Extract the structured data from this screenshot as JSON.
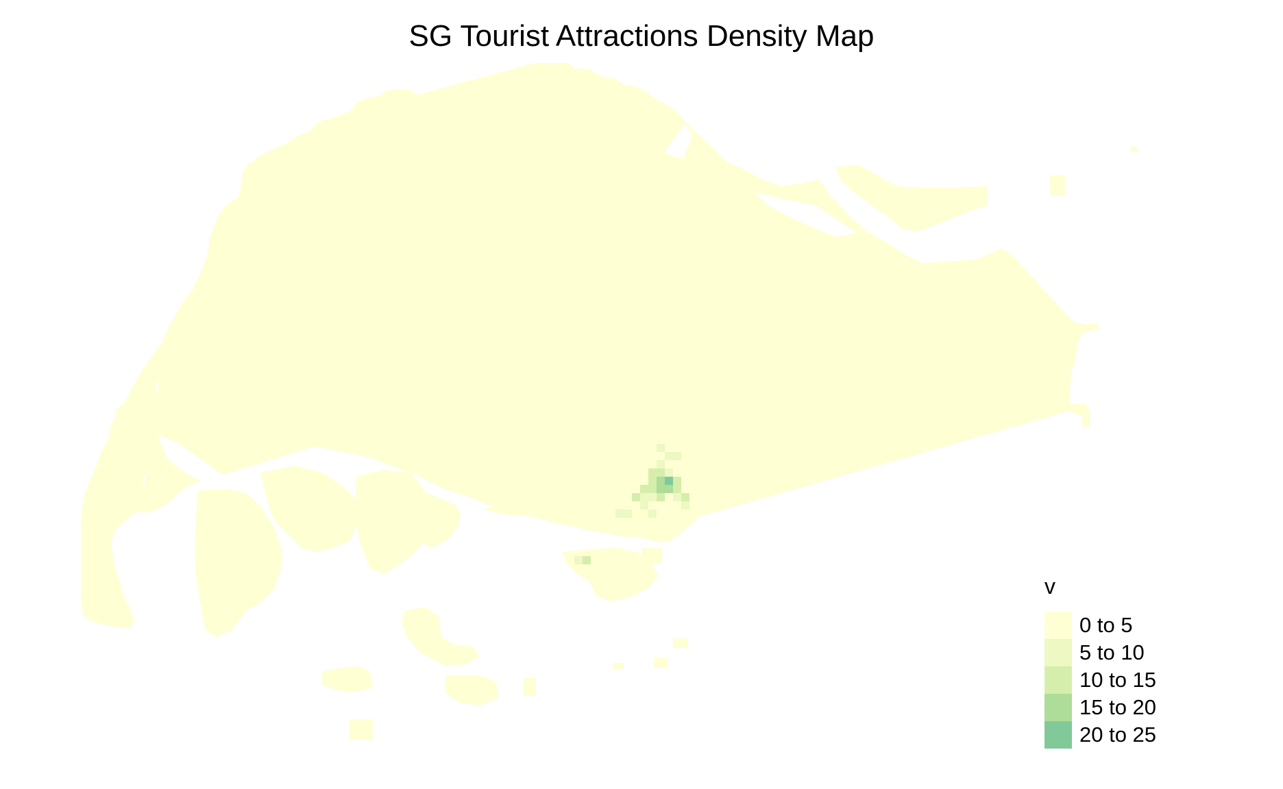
{
  "title": "SG Tourist Attractions Density Map",
  "legend": {
    "title": "v",
    "items": [
      {
        "label": "0 to 5",
        "color": "#ffffd4"
      },
      {
        "label": "5 to 10",
        "color": "#edf8c2"
      },
      {
        "label": "10 to 15",
        "color": "#d6eeac"
      },
      {
        "label": "15 to 20",
        "color": "#aedc99"
      },
      {
        "label": "20 to 25",
        "color": "#82c99a"
      }
    ]
  },
  "colors": {
    "background": "#ffffff",
    "density_0_5": "#ffffd4"
  }
}
